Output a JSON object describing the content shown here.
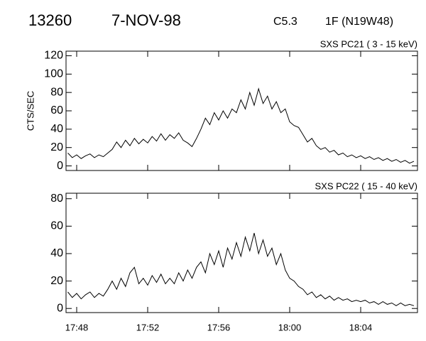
{
  "header": {
    "event": "13260",
    "date": "7-NOV-98",
    "class": "C5.3",
    "flare": "1F (N19W48)"
  },
  "chart_data": [
    {
      "type": "line",
      "title": "SXS PC21  (  3 - 15 keV)",
      "y_label": "CTS/SEC",
      "color": "#000000",
      "x": [
        -0.5,
        -0.25,
        0,
        0.25,
        0.5,
        0.75,
        1,
        1.25,
        1.5,
        1.75,
        2,
        2.25,
        2.5,
        2.75,
        3,
        3.25,
        3.5,
        3.75,
        4,
        4.25,
        4.5,
        4.75,
        5,
        5.25,
        5.5,
        5.75,
        6,
        6.25,
        6.5,
        6.75,
        7,
        7.25,
        7.5,
        7.75,
        8,
        8.25,
        8.5,
        8.75,
        9,
        9.25,
        9.5,
        9.75,
        10,
        10.25,
        10.5,
        10.75,
        11,
        11.25,
        11.5,
        11.75,
        12,
        12.25,
        12.5,
        12.75,
        13,
        13.25,
        13.5,
        13.75,
        14,
        14.25,
        14.5,
        14.75,
        15,
        15.25,
        15.5,
        15.75,
        16,
        16.25,
        16.5,
        16.75,
        17,
        17.25,
        17.5,
        17.75,
        18,
        18.25,
        18.5,
        18.75,
        19
      ],
      "values": [
        14,
        9,
        12,
        8,
        11,
        13,
        9,
        12,
        10,
        14,
        18,
        26,
        20,
        28,
        22,
        30,
        24,
        29,
        25,
        32,
        27,
        35,
        28,
        34,
        30,
        36,
        28,
        25,
        21,
        30,
        40,
        52,
        45,
        58,
        50,
        60,
        52,
        62,
        58,
        72,
        62,
        80,
        66,
        84,
        68,
        76,
        62,
        70,
        58,
        62,
        48,
        44,
        42,
        34,
        26,
        30,
        22,
        18,
        20,
        15,
        17,
        12,
        14,
        10,
        12,
        9,
        11,
        8,
        10,
        7,
        9,
        6,
        8,
        5,
        7,
        4,
        6,
        3,
        5
      ],
      "xlim": [
        -0.6,
        19.2
      ],
      "ylim": [
        -5,
        125
      ],
      "xticks": [
        {
          "value": 0,
          "label": "17:48"
        },
        {
          "value": 4,
          "label": "17:52"
        },
        {
          "value": 8,
          "label": "17:56"
        },
        {
          "value": 12,
          "label": "18:00"
        },
        {
          "value": 16,
          "label": "18:04"
        }
      ],
      "yticks": [
        0,
        20,
        40,
        60,
        80,
        100,
        120
      ]
    },
    {
      "type": "line",
      "title": "SXS PC22  ( 15 - 40 keV)",
      "color": "#000000",
      "x": [
        -0.5,
        -0.25,
        0,
        0.25,
        0.5,
        0.75,
        1,
        1.25,
        1.5,
        1.75,
        2,
        2.25,
        2.5,
        2.75,
        3,
        3.25,
        3.5,
        3.75,
        4,
        4.25,
        4.5,
        4.75,
        5,
        5.25,
        5.5,
        5.75,
        6,
        6.25,
        6.5,
        6.75,
        7,
        7.25,
        7.5,
        7.75,
        8,
        8.25,
        8.5,
        8.75,
        9,
        9.25,
        9.5,
        9.75,
        10,
        10.25,
        10.5,
        10.75,
        11,
        11.25,
        11.5,
        11.75,
        12,
        12.25,
        12.5,
        12.75,
        13,
        13.25,
        13.5,
        13.75,
        14,
        14.25,
        14.5,
        14.75,
        15,
        15.25,
        15.5,
        15.75,
        16,
        16.25,
        16.5,
        16.75,
        17,
        17.25,
        17.5,
        17.75,
        18,
        18.25,
        18.5,
        18.75,
        19
      ],
      "values": [
        12,
        8,
        11,
        7,
        10,
        12,
        8,
        11,
        9,
        14,
        20,
        14,
        22,
        16,
        26,
        30,
        18,
        22,
        17,
        24,
        19,
        25,
        18,
        22,
        18,
        26,
        20,
        28,
        22,
        30,
        34,
        26,
        40,
        32,
        42,
        30,
        44,
        36,
        48,
        38,
        52,
        42,
        55,
        40,
        50,
        38,
        44,
        32,
        40,
        28,
        22,
        20,
        16,
        14,
        10,
        12,
        8,
        10,
        7,
        9,
        6,
        8,
        6,
        7,
        5,
        6,
        5,
        6,
        4,
        5,
        3,
        5,
        3,
        4,
        2,
        4,
        2,
        3,
        2
      ],
      "xlim": [
        -0.6,
        19.2
      ],
      "ylim": [
        -3,
        84
      ],
      "xticks": [
        {
          "value": 0,
          "label": "17:48"
        },
        {
          "value": 4,
          "label": "17:52"
        },
        {
          "value": 8,
          "label": "17:56"
        },
        {
          "value": 12,
          "label": "18:00"
        },
        {
          "value": 16,
          "label": "18:04"
        }
      ],
      "yticks": [
        0,
        20,
        40,
        60,
        80
      ]
    }
  ]
}
